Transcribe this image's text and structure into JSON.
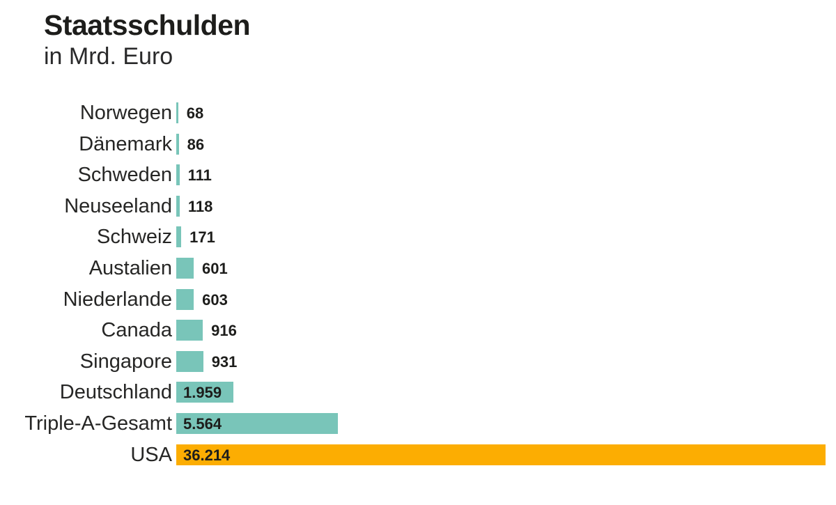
{
  "header": {
    "title": "Staatsschulden",
    "subtitle": "in Mrd. Euro"
  },
  "chart_data": {
    "type": "bar",
    "orientation": "horizontal",
    "title": "Staatsschulden",
    "subtitle": "in Mrd. Euro",
    "unit": "Mrd. Euro",
    "grid": false,
    "legend": false,
    "xlim": [
      0,
      36214
    ],
    "categories": [
      "Norwegen",
      "Dänemark",
      "Schweden",
      "Neuseeland",
      "Schweiz",
      "Austalien",
      "Niederlande",
      "Canada",
      "Singapore",
      "Deutschland",
      "Triple-A-Gesamt",
      "USA"
    ],
    "values": [
      68,
      86,
      111,
      118,
      171,
      601,
      603,
      916,
      931,
      1959,
      5564,
      36214
    ],
    "value_labels": [
      "68",
      "86",
      "111",
      "118",
      "171",
      "601",
      "603",
      "916",
      "931",
      "1.959",
      "5.564",
      "36.214"
    ],
    "colors": {
      "bar_default": "#79c5b9",
      "bar_highlight": "#fcad02",
      "text": "#1d1d1b"
    },
    "highlight_category": "USA"
  }
}
